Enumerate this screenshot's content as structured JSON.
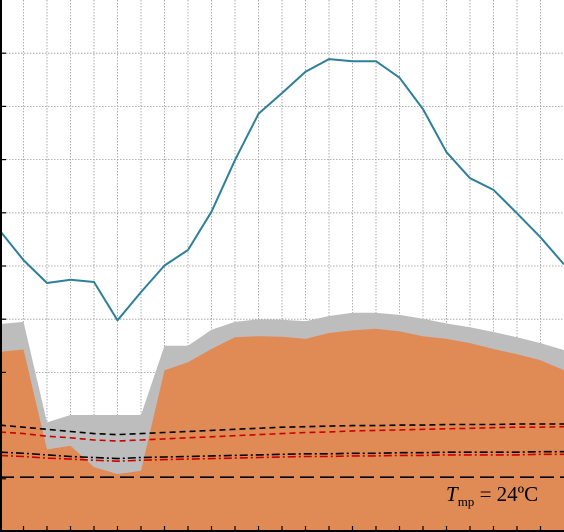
{
  "chart_data": {
    "type": "line",
    "grid": true,
    "xlim": [
      0,
      24
    ],
    "ylim": [
      0,
      100
    ],
    "x": [
      0,
      1,
      2,
      3,
      4,
      5,
      6,
      7,
      8,
      9,
      10,
      11,
      12,
      13,
      14,
      15,
      16,
      17,
      18,
      19,
      20,
      21,
      22,
      23,
      24
    ],
    "colors": {
      "line": "#2e7f99",
      "fill_orange": "#e08a55",
      "fill_grey": "#bdbdbd",
      "grid": "#9a9a9a",
      "black": "#000000",
      "red": "#cc0000"
    },
    "series": [
      {
        "style": "line",
        "color": "#2e7f99",
        "values": [
          56.6,
          51.1,
          46.8,
          47.4,
          47.0,
          39.8,
          45.1,
          50.1,
          53.0,
          60.2,
          69.9,
          78.6,
          82.5,
          86.5,
          88.9,
          88.5,
          88.5,
          85.4,
          79.5,
          71.4,
          66.5,
          64.3,
          59.9,
          55.4,
          50.3
        ]
      },
      {
        "style": "area-upper-grey",
        "color": "#bdbdbd",
        "values": [
          39.1,
          39.5,
          20.6,
          22.0,
          22.0,
          22.0,
          22.0,
          35.0,
          35.0,
          38.0,
          39.5,
          40.0,
          39.9,
          39.6,
          40.6,
          41.2,
          41.2,
          40.8,
          40.1,
          39.2,
          38.5,
          37.6,
          36.6,
          35.5,
          34.2
        ]
      },
      {
        "style": "area-orange",
        "color": "#e08a55",
        "values": [
          33.9,
          34.3,
          15.5,
          16.2,
          12.2,
          10.9,
          11.5,
          30.4,
          31.9,
          34.4,
          36.6,
          36.8,
          36.7,
          36.3,
          37.4,
          37.9,
          38.2,
          37.7,
          36.8,
          36.3,
          35.5,
          34.4,
          33.4,
          32.3,
          30.4
        ]
      },
      {
        "style": "dashed",
        "color": "#000000",
        "values": [
          20.1,
          19.7,
          19.3,
          18.9,
          18.5,
          18.3,
          18.5,
          18.7,
          18.9,
          19.1,
          19.3,
          19.5,
          19.7,
          19.8,
          19.9,
          20.0,
          20.0,
          20.1,
          20.1,
          20.2,
          20.2,
          20.2,
          20.3,
          20.3,
          20.3
        ]
      },
      {
        "style": "dashed",
        "color": "#cc0000",
        "values": [
          18.8,
          18.5,
          18.0,
          17.7,
          17.3,
          17.1,
          17.3,
          17.5,
          17.7,
          17.9,
          18.1,
          18.3,
          18.5,
          18.7,
          18.8,
          19.0,
          19.1,
          19.2,
          19.3,
          19.4,
          19.5,
          19.6,
          19.7,
          19.7,
          19.8
        ]
      },
      {
        "style": "dash-dot",
        "color": "#000000",
        "values": [
          15.0,
          14.8,
          14.5,
          14.2,
          14.0,
          13.8,
          14.0,
          14.1,
          14.2,
          14.3,
          14.4,
          14.5,
          14.6,
          14.7,
          14.7,
          14.8,
          14.8,
          14.9,
          14.9,
          15.0,
          15.0,
          15.0,
          15.0,
          15.1,
          15.1
        ]
      },
      {
        "style": "dash-dot",
        "color": "#cc0000",
        "values": [
          14.4,
          14.2,
          13.9,
          13.7,
          13.5,
          13.3,
          13.5,
          13.6,
          13.7,
          13.8,
          13.9,
          14.0,
          14.1,
          14.2,
          14.2,
          14.3,
          14.3,
          14.4,
          14.4,
          14.5,
          14.5,
          14.5,
          14.5,
          14.6,
          14.6
        ]
      },
      {
        "style": "long-dash",
        "color": "#000000",
        "values": [
          10.3,
          10.3,
          10.3,
          10.3,
          10.3,
          10.3,
          10.3,
          10.3,
          10.3,
          10.3,
          10.3,
          10.3,
          10.3,
          10.3,
          10.3,
          10.3,
          10.3,
          10.3,
          10.3,
          10.3,
          10.3,
          10.3,
          10.3,
          10.3,
          10.3
        ]
      }
    ],
    "annotation": {
      "symbol": "T",
      "subscript": "mp",
      "text": " = 24ºC",
      "position": "bottom-right"
    }
  }
}
